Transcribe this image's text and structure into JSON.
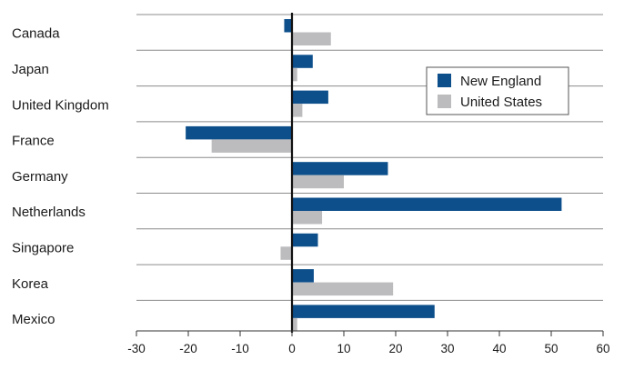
{
  "chart_data": {
    "type": "bar",
    "orientation": "horizontal",
    "categories": [
      "Canada",
      "Japan",
      "United Kingdom",
      "France",
      "Germany",
      "Netherlands",
      "Singapore",
      "Korea",
      "Mexico"
    ],
    "series": [
      {
        "name": "New England",
        "color": "#0d4f8b",
        "values": [
          -1.5,
          4,
          7,
          -20.5,
          18.5,
          52,
          5,
          4.2,
          27.5
        ]
      },
      {
        "name": "United States",
        "color": "#bcbcbe",
        "values": [
          7.5,
          1,
          2,
          -15.5,
          10,
          5.8,
          -2.2,
          19.5,
          1
        ]
      }
    ],
    "xlim": [
      -30,
      60
    ],
    "xticks": [
      -30,
      -20,
      -10,
      0,
      10,
      20,
      30,
      40,
      50,
      60
    ],
    "grid": "horizontal separators between categories",
    "legend_position": "top-right"
  }
}
